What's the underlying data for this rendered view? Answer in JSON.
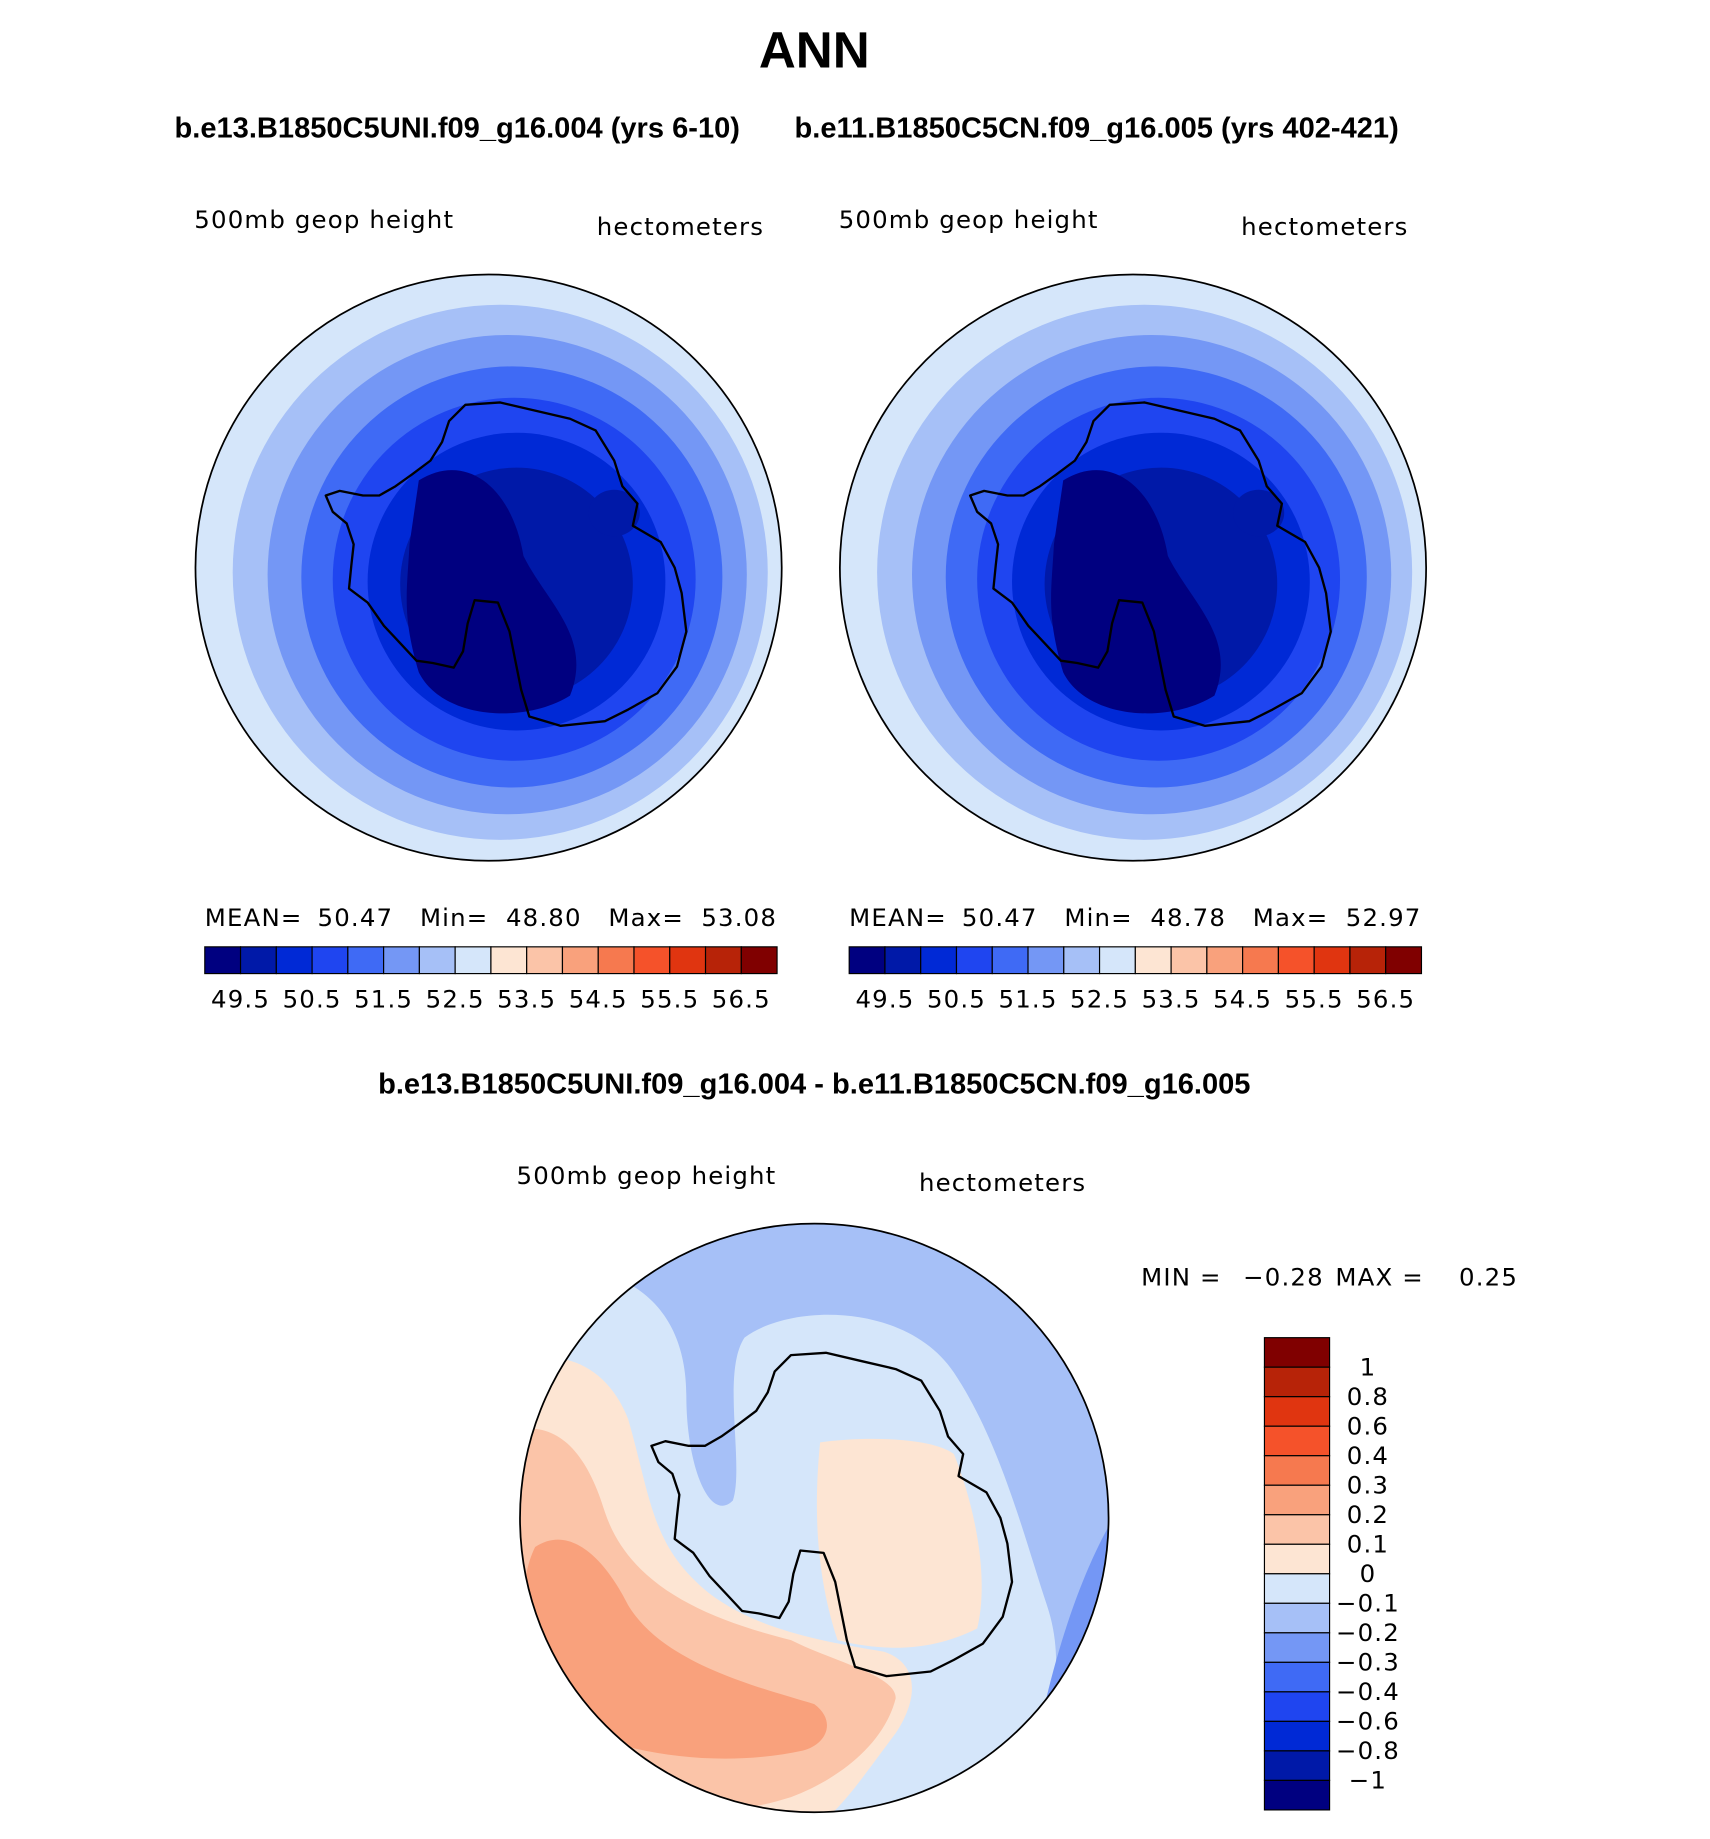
{
  "title": "ANN",
  "panels": [
    {
      "case": "b.e13.B1850C5UNI.f09_g16.004 (yrs 6-10)",
      "variable": "500mb geop height",
      "units": "hectometers",
      "stats": [
        [
          "MEAN=",
          "50.47"
        ],
        [
          "Min=",
          "48.80"
        ],
        [
          "Max=",
          "53.08"
        ]
      ]
    },
    {
      "case": "b.e11.B1850C5CN.f09_g16.005 (yrs 402-421)",
      "variable": "500mb geop height",
      "units": "hectometers",
      "stats": [
        [
          "MEAN=",
          "50.47"
        ],
        [
          "Min=",
          "48.78"
        ],
        [
          "Max=",
          "52.97"
        ]
      ]
    }
  ],
  "colorbar": {
    "labels": [
      "49.5",
      "50.5",
      "51.5",
      "52.5",
      "53.5",
      "54.5",
      "55.5",
      "56.5"
    ],
    "colors": [
      "#000080",
      "#0019a8",
      "#0029d6",
      "#1f45f0",
      "#3f6af5",
      "#7497f5",
      "#a6c0f7",
      "#d5e6fa",
      "#fde5d3",
      "#fbc4a8",
      "#f9a17c",
      "#f6794f",
      "#f5522a",
      "#e03510",
      "#b72308",
      "#800000"
    ]
  },
  "difference": {
    "title": "b.e13.B1850C5UNI.f09_g16.004 - b.e11.B1850C5CN.f09_g16.005",
    "variable": "500mb geop height",
    "units": "hectometers",
    "stats": [
      [
        "MIN =",
        "−0.28"
      ],
      [
        "MAX =",
        "0.25"
      ]
    ],
    "colorbar": {
      "labels": [
        "1",
        "0.8",
        "0.6",
        "0.4",
        "0.3",
        "0.2",
        "0.1",
        "0",
        "−0.1",
        "−0.2",
        "−0.3",
        "−0.4",
        "−0.6",
        "−0.8",
        "−1"
      ],
      "colors": [
        "#800000",
        "#b72308",
        "#e03510",
        "#f5522a",
        "#f6794f",
        "#f9a17c",
        "#fbc4a8",
        "#fde5d3",
        "#d5e6fa",
        "#a6c0f7",
        "#7497f5",
        "#3f6af5",
        "#1f45f0",
        "#0029d6",
        "#0019a8",
        "#000080"
      ]
    }
  }
}
